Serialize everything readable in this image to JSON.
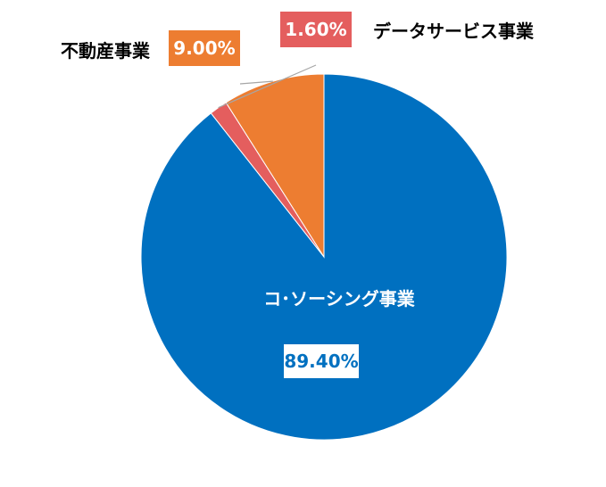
{
  "chart_data": {
    "type": "pie",
    "title": "",
    "slices": [
      {
        "label": "コ･ソーシング事業",
        "value": 89.4,
        "value_label": "89.40%",
        "color": "#0070C0"
      },
      {
        "label": "データサービス事業",
        "value": 1.6,
        "value_label": "1.60%",
        "color": "#E45E5E"
      },
      {
        "label": "不動産事業",
        "value": 9.0,
        "value_label": "9.00%",
        "color": "#ED7D31"
      }
    ],
    "legend": "none",
    "start_angle": "12 o'clock"
  }
}
